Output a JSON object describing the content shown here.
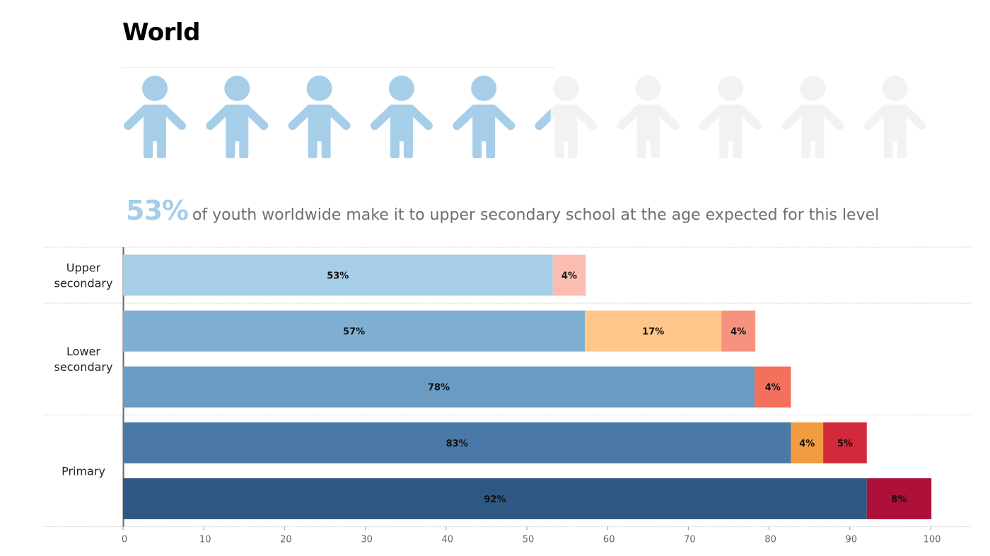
{
  "title": "World",
  "icons": {
    "count": 10,
    "filled_percent": 53,
    "filled_color": "#a6cee8",
    "empty_color": "#f2f2f2",
    "icon": "child-icon"
  },
  "headline": {
    "value": "53%",
    "text": "of youth worldwide make it to upper secondary school at the age expected for this level"
  },
  "chart_data": {
    "type": "bar",
    "orientation": "horizontal",
    "stacked": true,
    "categories": [
      {
        "label": [
          "Upper",
          "secondary"
        ],
        "bars": 1
      },
      {
        "label": [
          "Lower",
          "secondary"
        ],
        "bars": 2
      },
      {
        "label": [
          "Primary"
        ],
        "bars": 2
      }
    ],
    "bars": [
      {
        "category": "Upper secondary",
        "segments": [
          {
            "value": 53.2,
            "label": "53%",
            "color": "#a6cee8"
          },
          {
            "value": 4.1,
            "label": "4%",
            "color": "#fbbdaf"
          }
        ]
      },
      {
        "category": "Lower secondary",
        "segments": [
          {
            "value": 57.2,
            "label": "57%",
            "color": "#80afd4"
          },
          {
            "value": 16.9,
            "label": "17%",
            "color": "#fec689"
          },
          {
            "value": 4.2,
            "label": "4%",
            "color": "#f6937e"
          }
        ]
      },
      {
        "category": "Lower secondary",
        "segments": [
          {
            "value": 78.2,
            "label": "78%",
            "color": "#699bc3"
          },
          {
            "value": 4.5,
            "label": "4%",
            "color": "#f3705d"
          }
        ]
      },
      {
        "category": "Primary",
        "segments": [
          {
            "value": 82.7,
            "label": "83%",
            "color": "#4a78a7"
          },
          {
            "value": 4.0,
            "label": "4%",
            "color": "#f29c41"
          },
          {
            "value": 5.4,
            "label": "5%",
            "color": "#d3293d"
          }
        ]
      },
      {
        "category": "Primary",
        "segments": [
          {
            "value": 92.1,
            "label": "92%",
            "color": "#2e5784"
          },
          {
            "value": 8.0,
            "label": "8%",
            "color": "#ae1039"
          }
        ]
      }
    ],
    "xlim": [
      0,
      100
    ],
    "xticks": [
      0,
      10,
      20,
      30,
      40,
      50,
      60,
      70,
      80,
      90,
      100
    ],
    "xlabel": "",
    "ylabel": "",
    "grid": false
  }
}
